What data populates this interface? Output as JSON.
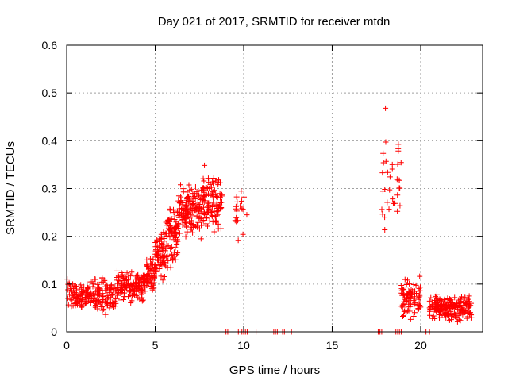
{
  "chart_data": {
    "type": "scatter",
    "title": "Day 021 of 2017, SRMTID for receiver mtdn",
    "xlabel": "GPS time / hours",
    "ylabel": "SRMTID / TECUs",
    "xlim": [
      0,
      23.5
    ],
    "ylim": [
      0,
      0.6
    ],
    "xticks": [
      0,
      5,
      10,
      15,
      20
    ],
    "yticks": [
      0,
      0.1,
      0.2,
      0.3,
      0.4,
      0.5,
      0.6
    ],
    "xtick_labels": [
      "0",
      "5",
      "10",
      "15",
      "20"
    ],
    "ytick_labels": [
      "0",
      "0.1",
      "0.2",
      "0.3",
      "0.4",
      "0.5",
      "0.6"
    ],
    "grid": true,
    "marker": "+",
    "color": "#ff0000",
    "segments": [
      {
        "x_start": 0.0,
        "x_end": 2.8,
        "y_center": 0.075,
        "y_spread": 0.045,
        "density": 200
      },
      {
        "x_start": 2.8,
        "x_end": 4.5,
        "y_center": 0.095,
        "y_spread": 0.045,
        "density": 150
      },
      {
        "x_start": 4.5,
        "x_end": 5.0,
        "y_center": 0.12,
        "y_spread": 0.05,
        "density": 60
      },
      {
        "x_start": 5.0,
        "x_end": 5.6,
        "y_center": 0.16,
        "y_spread": 0.07,
        "density": 70
      },
      {
        "x_start": 5.6,
        "x_end": 6.3,
        "y_center": 0.2,
        "y_spread": 0.09,
        "density": 80
      },
      {
        "x_start": 6.3,
        "x_end": 7.5,
        "y_center": 0.25,
        "y_spread": 0.08,
        "density": 140
      },
      {
        "x_start": 7.5,
        "x_end": 8.8,
        "y_center": 0.27,
        "y_spread": 0.09,
        "density": 130
      },
      {
        "x_start": 9.5,
        "x_end": 10.2,
        "y_center": 0.25,
        "y_spread": 0.09,
        "density": 18
      },
      {
        "x_start": 17.8,
        "x_end": 18.9,
        "y_center": 0.3,
        "y_spread": 0.2,
        "density": 35
      },
      {
        "x_start": 18.9,
        "x_end": 20.0,
        "y_center": 0.07,
        "y_spread": 0.05,
        "density": 90
      },
      {
        "x_start": 20.5,
        "x_end": 22.9,
        "y_center": 0.05,
        "y_spread": 0.035,
        "density": 220
      }
    ],
    "zero_points_x": [
      9.0,
      9.1,
      9.7,
      9.9,
      10.0,
      10.1,
      10.2,
      10.7,
      11.7,
      11.8,
      11.9,
      12.2,
      12.3,
      12.7,
      17.6,
      17.7,
      17.8,
      18.5,
      18.6,
      18.7,
      18.8,
      18.9,
      20.3,
      20.5
    ]
  }
}
